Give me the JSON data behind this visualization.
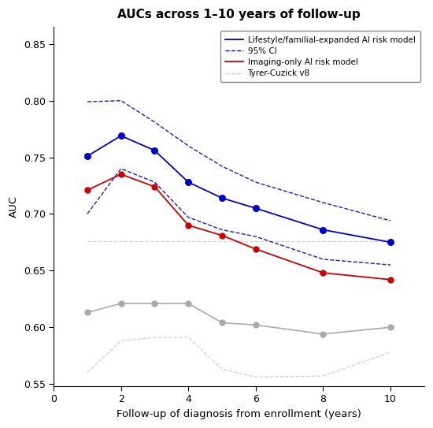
{
  "title": "AUCs across 1–10 years of follow-up",
  "xlabel": "Follow-up of diagnosis from enrollment (years)",
  "ylabel": "AUC",
  "x": [
    1,
    2,
    3,
    4,
    5,
    6,
    8,
    10
  ],
  "blue_main": [
    0.751,
    0.769,
    0.756,
    0.728,
    0.714,
    0.705,
    0.686,
    0.675
  ],
  "blue_ci_upper": [
    0.799,
    0.8,
    0.781,
    0.76,
    0.742,
    0.728,
    0.71,
    0.694
  ],
  "blue_ci_lower": [
    0.7,
    0.74,
    0.728,
    0.697,
    0.686,
    0.68,
    0.66,
    0.655
  ],
  "red_main": [
    0.721,
    0.735,
    0.724,
    0.69,
    0.681,
    0.669,
    0.648,
    0.642
  ],
  "gray_main": [
    0.613,
    0.621,
    0.621,
    0.621,
    0.604,
    0.602,
    0.594,
    0.6
  ],
  "gray_ci_upper": [
    0.676,
    0.676,
    0.676,
    0.676,
    0.676,
    0.676,
    0.676,
    0.676
  ],
  "gray_ci_lower": [
    0.56,
    0.588,
    0.591,
    0.591,
    0.563,
    0.556,
    0.557,
    0.578
  ],
  "xlim": [
    0,
    11
  ],
  "ylim": [
    0.548,
    0.865
  ],
  "xticks": [
    0,
    2,
    4,
    6,
    8,
    10
  ],
  "yticks": [
    0.55,
    0.6,
    0.65,
    0.7,
    0.75,
    0.8,
    0.85
  ],
  "blue_color": "#0000CC",
  "red_color": "#CC0000",
  "gray_color": "#AAAAAA",
  "gray_ci_color": "#CCCCCC",
  "legend_labels": [
    "Lifestyle/familial-expanded AI risk model",
    "95% CI",
    "Imaging-only AI risk model",
    "Tyrer-Cuzick v8"
  ]
}
